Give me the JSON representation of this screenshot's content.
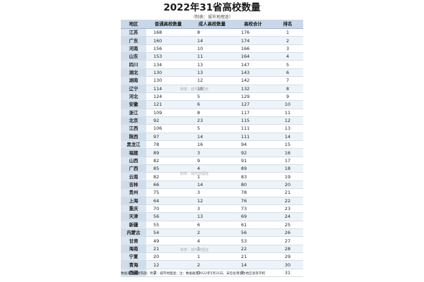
{
  "title": "2022年31省高校数量",
  "subtitle": "（制表：城市地理迷）",
  "columns": [
    "地区",
    "普通高校数量",
    "成人高校数量",
    "高校合计",
    "排名"
  ],
  "rows": [
    [
      "江苏",
      "168",
      "8",
      "176",
      "1"
    ],
    [
      "广东",
      "160",
      "14",
      "174",
      "2"
    ],
    [
      "河南",
      "156",
      "10",
      "166",
      "3"
    ],
    [
      "山东",
      "153",
      "11",
      "164",
      "4"
    ],
    [
      "四川",
      "134",
      "13",
      "147",
      "5"
    ],
    [
      "湖北",
      "130",
      "13",
      "143",
      "6"
    ],
    [
      "湖南",
      "130",
      "12",
      "142",
      "7"
    ],
    [
      "辽宁",
      "114",
      "18",
      "132",
      "8"
    ],
    [
      "河北",
      "124",
      "5",
      "129",
      "9"
    ],
    [
      "安徽",
      "121",
      "6",
      "127",
      "10"
    ],
    [
      "浙江",
      "109",
      "8",
      "117",
      "11"
    ],
    [
      "北京",
      "92",
      "23",
      "115",
      "12"
    ],
    [
      "江西",
      "106",
      "5",
      "111",
      "13"
    ],
    [
      "陕西",
      "97",
      "14",
      "111",
      "14"
    ],
    [
      "黑龙江",
      "78",
      "16",
      "94",
      "15"
    ],
    [
      "福建",
      "89",
      "3",
      "92",
      "16"
    ],
    [
      "山西",
      "82",
      "9",
      "91",
      "17"
    ],
    [
      "广西",
      "85",
      "4",
      "89",
      "18"
    ],
    [
      "云南",
      "82",
      "1",
      "83",
      "19"
    ],
    [
      "吉林",
      "66",
      "14",
      "80",
      "20"
    ],
    [
      "贵州",
      "75",
      "3",
      "78",
      "21"
    ],
    [
      "上海",
      "64",
      "12",
      "76",
      "22"
    ],
    [
      "重庆",
      "70",
      "3",
      "73",
      "23"
    ],
    [
      "天津",
      "56",
      "13",
      "69",
      "24"
    ],
    [
      "新疆",
      "55",
      "6",
      "61",
      "25"
    ],
    [
      "内蒙古",
      "54",
      "2",
      "56",
      "26"
    ],
    [
      "甘肃",
      "49",
      "4",
      "53",
      "27"
    ],
    [
      "海南",
      "21",
      "1",
      "22",
      "28"
    ],
    [
      "宁夏",
      "20",
      "1",
      "21",
      "29"
    ],
    [
      "青海",
      "12",
      "2",
      "14",
      "30"
    ],
    [
      "西藏",
      "7",
      "0",
      "7",
      "31"
    ]
  ],
  "watermarks": [
    "制表：城市地理迷",
    "制表：城市地理迷",
    "制表：城市地理迷"
  ],
  "footer": "数据来源：教育部；制表：城市地理迷；注：数据截至2022年5月31日，未包含港澳台地区高等学校",
  "colors": {
    "header_bg": "#c8d8e8",
    "region_bg": "#dbe6f1",
    "row_alt": "#eef3f8"
  }
}
